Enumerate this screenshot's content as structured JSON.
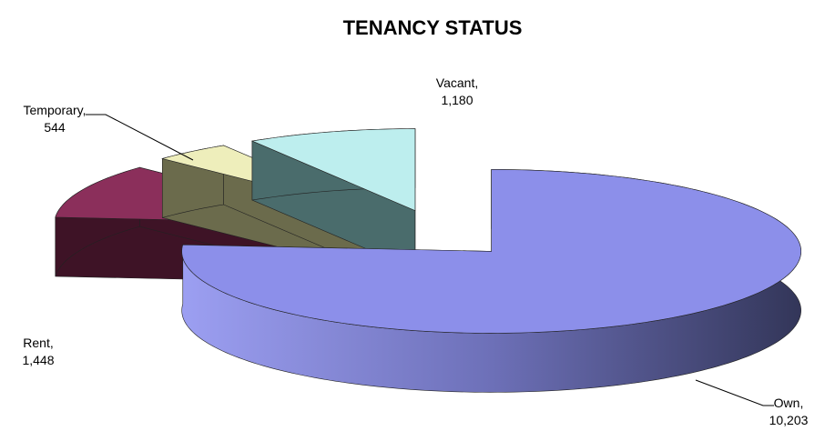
{
  "chart_data": {
    "type": "pie3d",
    "title": "TENANCY STATUS",
    "categories": [
      "Own,",
      "Rent,",
      "Temporary,",
      "Vacant,"
    ],
    "values": [
      10203,
      1448,
      544,
      1180
    ],
    "value_labels": [
      "10,203",
      "1,448",
      "544",
      "1,180"
    ],
    "colors": [
      "#8c8fea",
      "#8b2f5b",
      "#eeeebb",
      "#bdeeee"
    ]
  }
}
